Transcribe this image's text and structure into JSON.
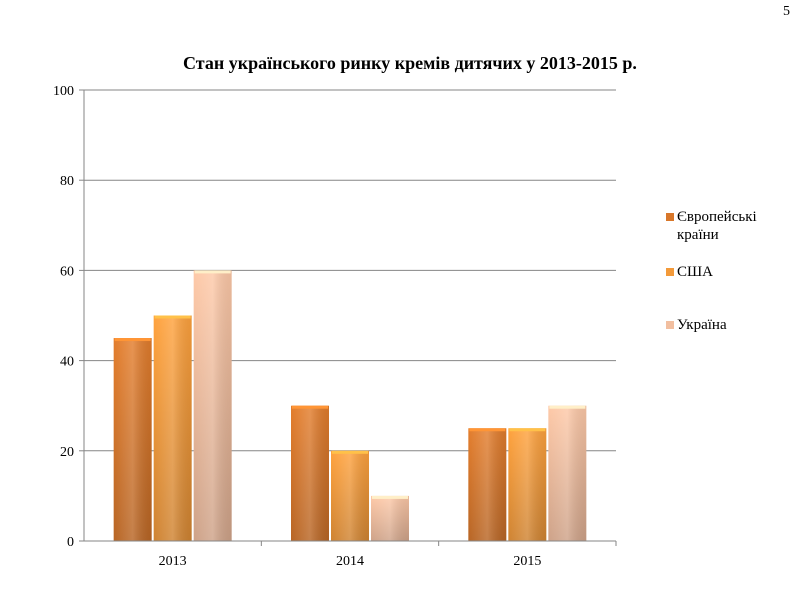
{
  "slide_number": "5",
  "colors": {
    "series_1": "#d8772a",
    "series_2": "#f39a3a",
    "series_3": "#f2bfa0",
    "gridline": "#868686",
    "axis": "#868686"
  },
  "chart_data": {
    "type": "bar",
    "title": "Стан українського ринку кремів дитячих у 2013-2015 р.",
    "categories": [
      "2013",
      "2014",
      "2015"
    ],
    "series": [
      {
        "name": "Європейські країни",
        "values": [
          45,
          30,
          25
        ]
      },
      {
        "name": "США",
        "values": [
          50,
          20,
          25
        ]
      },
      {
        "name": "Україна",
        "values": [
          60,
          10,
          30
        ]
      }
    ],
    "ylim": [
      0,
      100
    ],
    "yticks": [
      "0",
      "20",
      "40",
      "60",
      "80",
      "100"
    ],
    "grid": true,
    "legend_position": "right"
  }
}
